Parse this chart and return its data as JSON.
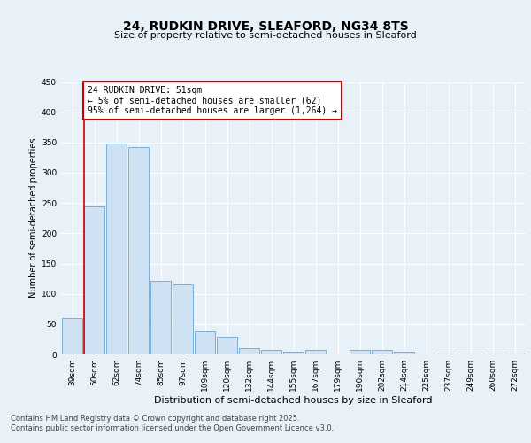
{
  "title_line1": "24, RUDKIN DRIVE, SLEAFORD, NG34 8TS",
  "title_line2": "Size of property relative to semi-detached houses in Sleaford",
  "xlabel": "Distribution of semi-detached houses by size in Sleaford",
  "ylabel": "Number of semi-detached properties",
  "categories": [
    "39sqm",
    "50sqm",
    "62sqm",
    "74sqm",
    "85sqm",
    "97sqm",
    "109sqm",
    "120sqm",
    "132sqm",
    "144sqm",
    "155sqm",
    "167sqm",
    "179sqm",
    "190sqm",
    "202sqm",
    "214sqm",
    "225sqm",
    "237sqm",
    "249sqm",
    "260sqm",
    "272sqm"
  ],
  "values": [
    60,
    245,
    348,
    343,
    122,
    115,
    38,
    30,
    10,
    7,
    5,
    7,
    0,
    7,
    7,
    5,
    0,
    2,
    2,
    2,
    1
  ],
  "bar_color": "#cfe2f3",
  "bar_edge_color": "#7bafd4",
  "annotation_line1": "24 RUDKIN DRIVE: 51sqm",
  "annotation_line2": "← 5% of semi-detached houses are smaller (62)",
  "annotation_line3": "95% of semi-detached houses are larger (1,264) →",
  "annotation_box_edge_color": "#cc0000",
  "ylim": [
    0,
    450
  ],
  "yticks": [
    0,
    50,
    100,
    150,
    200,
    250,
    300,
    350,
    400,
    450
  ],
  "footer_text": "Contains HM Land Registry data © Crown copyright and database right 2025.\nContains public sector information licensed under the Open Government Licence v3.0.",
  "bg_color": "#e8f0f8",
  "red_line_color": "#cc0000",
  "grid_color": "#ffffff",
  "title1_fontsize": 10,
  "title2_fontsize": 8,
  "xlabel_fontsize": 8,
  "ylabel_fontsize": 7,
  "tick_fontsize": 6.5,
  "annotation_fontsize": 7,
  "footer_fontsize": 6
}
